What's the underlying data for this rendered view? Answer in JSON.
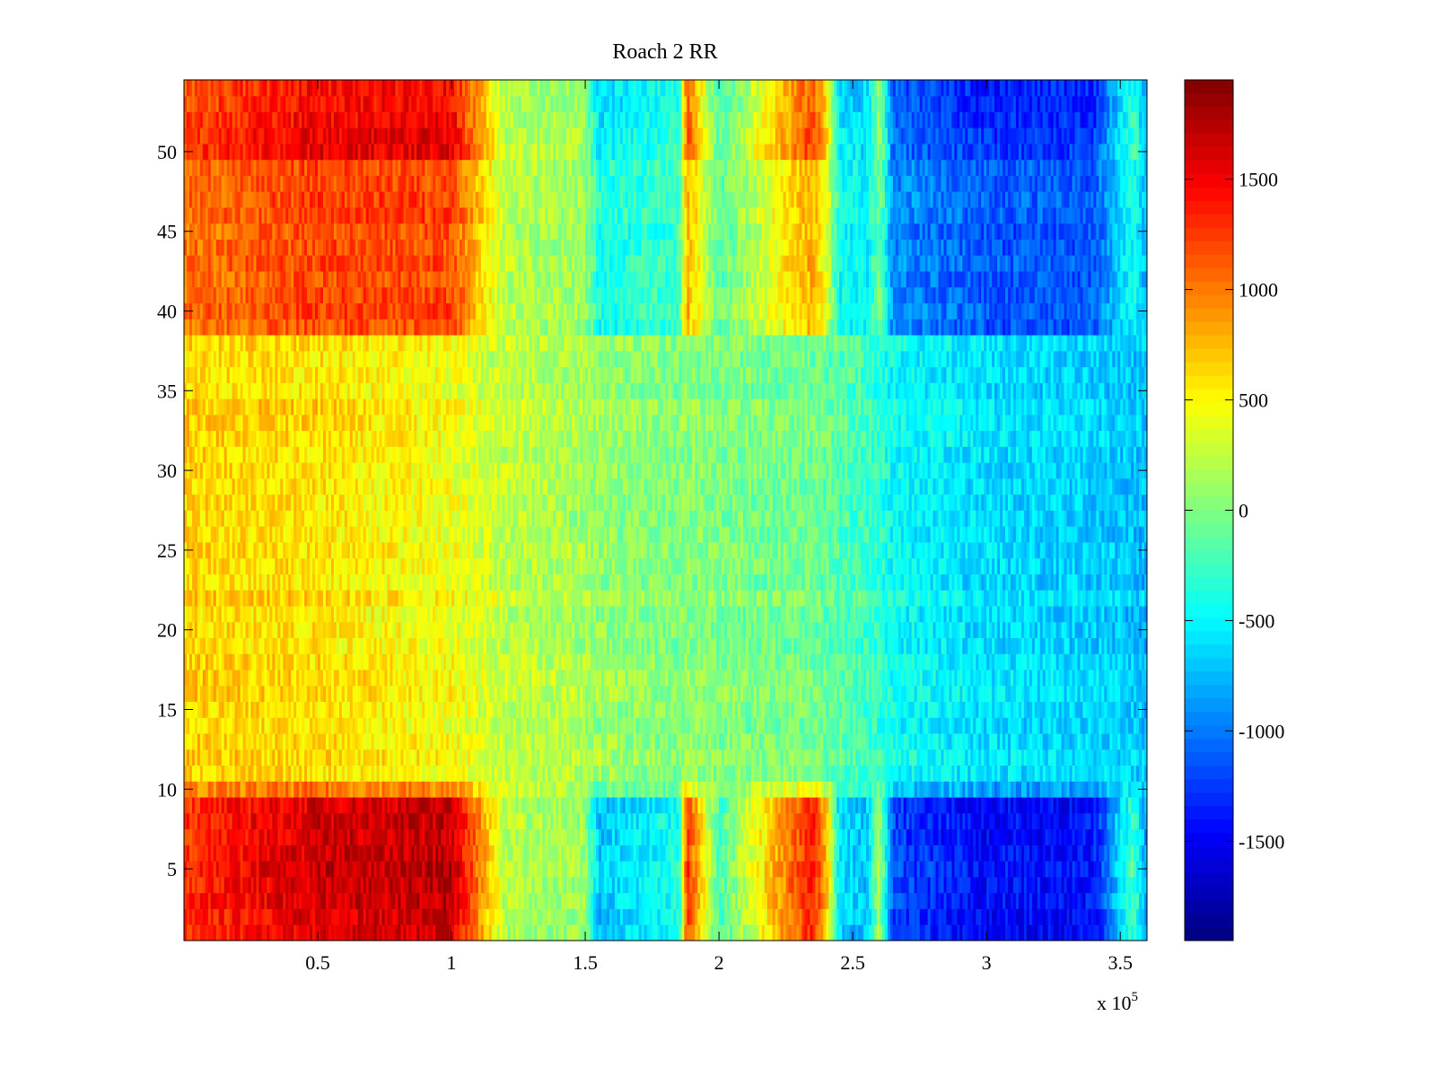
{
  "chart_data": {
    "type": "heatmap",
    "title": "Roach 2 RR",
    "xlabel": "",
    "ylabel": "",
    "xlim": [
      0,
      360000
    ],
    "ylim": [
      0.5,
      54.5
    ],
    "x_multiplier_label": "x 10",
    "x_multiplier_exponent": "5",
    "x_ticks": [
      {
        "value": 50000,
        "label": "0.5"
      },
      {
        "value": 100000,
        "label": "1"
      },
      {
        "value": 150000,
        "label": "1.5"
      },
      {
        "value": 200000,
        "label": "2"
      },
      {
        "value": 250000,
        "label": "2.5"
      },
      {
        "value": 300000,
        "label": "3"
      },
      {
        "value": 350000,
        "label": "3.5"
      }
    ],
    "y_ticks": [
      {
        "value": 5,
        "label": "5"
      },
      {
        "value": 10,
        "label": "10"
      },
      {
        "value": 15,
        "label": "15"
      },
      {
        "value": 20,
        "label": "20"
      },
      {
        "value": 25,
        "label": "25"
      },
      {
        "value": 30,
        "label": "30"
      },
      {
        "value": 35,
        "label": "35"
      },
      {
        "value": 40,
        "label": "40"
      },
      {
        "value": 45,
        "label": "45"
      },
      {
        "value": 50,
        "label": "50"
      }
    ],
    "colorbar": {
      "colormap": "jet",
      "clim": [
        -1950,
        1950
      ],
      "ticks": [
        {
          "value": 1500,
          "label": "1500"
        },
        {
          "value": 1000,
          "label": "1000"
        },
        {
          "value": 500,
          "label": "500"
        },
        {
          "value": 0,
          "label": "0"
        },
        {
          "value": -500,
          "label": "-500"
        },
        {
          "value": -1000,
          "label": "-1000"
        },
        {
          "value": -1500,
          "label": "-1500"
        }
      ]
    },
    "rows": 54,
    "x_profile": {
      "x": [
        0,
        50000,
        100000,
        110000,
        120000,
        150000,
        155000,
        185000,
        188000,
        200000,
        235000,
        240000,
        245000,
        255000,
        260000,
        265000,
        300000,
        340000,
        355000,
        360000
      ],
      "value_outer_rows": [
        1300,
        1650,
        1700,
        1000,
        200,
        100,
        -700,
        -400,
        1300,
        -200,
        1400,
        800,
        -600,
        -700,
        200,
        -1200,
        -1450,
        -1400,
        -200,
        -900
      ],
      "value_middle_rows": [
        650,
        600,
        450,
        350,
        250,
        150,
        100,
        0,
        50,
        0,
        -50,
        -100,
        -150,
        -250,
        -300,
        -450,
        -600,
        -650,
        -700,
        -750
      ]
    },
    "row_groups": [
      {
        "rows": [
          1,
          9
        ],
        "strength": 1.0
      },
      {
        "rows": [
          10,
          10
        ],
        "strength": 0.35
      },
      {
        "rows": [
          11,
          38
        ],
        "strength": 0.0
      },
      {
        "rows": [
          39,
          49
        ],
        "strength": 0.6
      },
      {
        "rows": [
          50,
          54
        ],
        "strength": 0.85
      }
    ]
  }
}
